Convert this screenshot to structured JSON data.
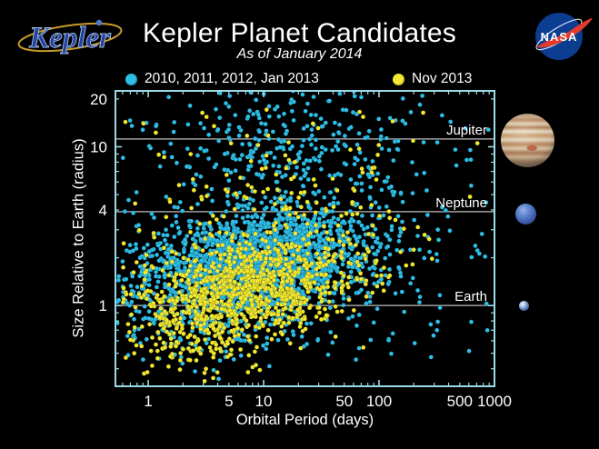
{
  "header": {
    "kepler_logo": "Kepler",
    "title": "Kepler Planet Candidates",
    "subtitle": "As of January 2014",
    "nasa_logo": "NASA"
  },
  "legend": {
    "items": [
      {
        "label": "2010, 2011, 2012, Jan 2013",
        "color": "#2ebfe8"
      },
      {
        "label": "Nov 2013",
        "color": "#f2e930"
      }
    ]
  },
  "colors": {
    "background": "#000000",
    "text": "#ffffff",
    "plot_border": "#9adbe6",
    "gridline": "#a0a0a0",
    "candidate_old": "#2ebfe8",
    "candidate_new": "#f2e930"
  },
  "chart_data": {
    "type": "scatter",
    "title": "Kepler Planet Candidates",
    "subtitle": "As of January 2014",
    "xlabel": "Orbital Period (days)",
    "ylabel": "Size Relative to Earth (radius)",
    "x_scale": "log",
    "y_scale": "log",
    "xlim_days": [
      0.52,
      1000
    ],
    "ylim_earth_radii": [
      0.31,
      22.5
    ],
    "x_tick_labels": [
      1,
      5,
      10,
      50,
      100,
      500,
      1000
    ],
    "y_tick_labels": [
      1,
      4,
      10,
      20
    ],
    "grid": "horizontal reference lines only",
    "legend_position": "top",
    "reference_lines": [
      {
        "label": "Jupiter",
        "earth_radii": 11.2
      },
      {
        "label": "Neptune",
        "earth_radii": 3.9
      },
      {
        "label": "Earth",
        "earth_radii": 1.0
      }
    ],
    "seed": 20140101,
    "point_radius_px": 2.4,
    "series": [
      {
        "name": "2010, 2011, 2012, Jan 2013",
        "color": "#2ebfe8",
        "approx_count": 2600,
        "clusters": [
          {
            "n": 2100,
            "logP_mean": 0.95,
            "logP_sd": 0.5,
            "logR_mean": 0.27,
            "logR_sd": 0.17,
            "slope": 0.08
          },
          {
            "n": 280,
            "logP_mean": 1.2,
            "logP_sd": 0.55,
            "logR_mean": 0.97,
            "logR_sd": 0.2,
            "slope": 0
          },
          {
            "n": 180,
            "uniform": true,
            "logP_min": -0.25,
            "logP_max": 2.95,
            "logR_min": -0.35,
            "logR_max": 1.33
          },
          {
            "n": 130,
            "logP_mean": 0.5,
            "logP_sd": 0.35,
            "logR_mean": -0.15,
            "logR_sd": 0.12,
            "slope": 0
          }
        ]
      },
      {
        "name": "Nov 2013",
        "color": "#f2e930",
        "approx_count": 1150,
        "clusters": [
          {
            "n": 950,
            "logP_mean": 0.85,
            "logP_sd": 0.48,
            "logR_mean": 0.1,
            "logR_sd": 0.16,
            "slope": 0.12
          },
          {
            "n": 120,
            "logP_mean": 1.3,
            "logP_sd": 0.5,
            "logR_mean": 0.55,
            "logR_sd": 0.25,
            "slope": 0
          },
          {
            "n": 40,
            "uniform": true,
            "logP_min": -0.2,
            "logP_max": 2.9,
            "logR_min": 0.55,
            "logR_max": 1.25
          },
          {
            "n": 100,
            "logP_mean": 0.45,
            "logP_sd": 0.35,
            "logR_mean": -0.2,
            "logR_sd": 0.13,
            "slope": 0
          }
        ]
      }
    ]
  },
  "planet_images": [
    {
      "name": "Jupiter"
    },
    {
      "name": "Neptune"
    },
    {
      "name": "Earth"
    }
  ]
}
